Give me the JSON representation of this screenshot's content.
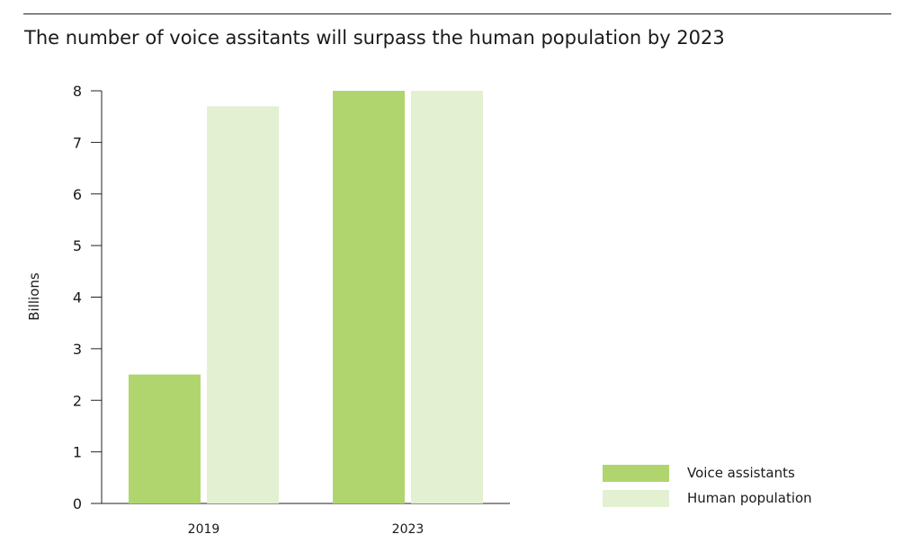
{
  "chart_data": {
    "type": "bar",
    "title": "The number of voice assitants will surpass the human population by 2023",
    "xlabel": "",
    "ylabel": "Billions",
    "categories": [
      "2019",
      "2023"
    ],
    "series": [
      {
        "name": "Voice assistants",
        "values": [
          2.5,
          8.0
        ],
        "color": "#b0d56e"
      },
      {
        "name": "Human population",
        "values": [
          7.7,
          8.0
        ],
        "color": "#e4f0d2"
      }
    ],
    "yticks": [
      "0",
      "1",
      "2",
      "3",
      "4",
      "5",
      "6",
      "7",
      "8"
    ],
    "ylim": [
      0,
      8
    ],
    "grid": false,
    "legend_position": "bottom-right"
  }
}
